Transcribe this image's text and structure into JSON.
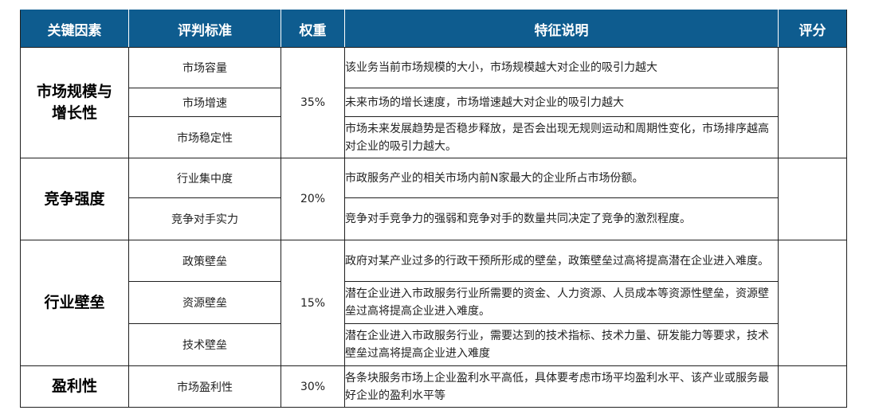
{
  "header": {
    "col_factor": "关键因素",
    "col_criterion": "评判标准",
    "col_weight": "权重",
    "col_desc": "特征说明",
    "col_score": "评分"
  },
  "groups": [
    {
      "factor": "市场规模与增长性",
      "weight": "35%",
      "rows": [
        {
          "criterion": "市场容量",
          "desc": "该业务当前市场规模的大小，市场规模越大对企业的吸引力越大"
        },
        {
          "criterion": "市场增速",
          "desc": "未来市场的增长速度，市场增速越大对企业的吸引力越大"
        },
        {
          "criterion": "市场稳定性",
          "desc": "市场未来发展趋势是否稳步释放，是否会出现无规则运动和周期性变化，市场排序越高对企业的吸引力越大。"
        }
      ]
    },
    {
      "factor": "竞争强度",
      "weight": "20%",
      "rows": [
        {
          "criterion": "行业集中度",
          "desc": "市政服务产业的相关市场内前N家最大的企业所占市场份额。"
        },
        {
          "criterion": "竞争对手实力",
          "desc": "竞争对手竞争力的强弱和竞争对手的数量共同决定了竞争的激烈程度。"
        }
      ]
    },
    {
      "factor": "行业壁垒",
      "weight": "15%",
      "rows": [
        {
          "criterion": "政策壁垒",
          "desc": "政府对某产业过多的行政干预所形成的壁垒，政策壁垒过高将提高潜在企业进入难度。"
        },
        {
          "criterion": "资源壁垒",
          "desc": "潜在企业进入市政服务行业所需要的资金、人力资源、人员成本等资源性壁垒，资源壁垒过高将提高企业进入难度。"
        },
        {
          "criterion": "技术壁垒",
          "desc": "潜在企业进入市政服务行业，需要达到的技术指标、技术力量、研发能力等要求，技术壁垒过高将提高企业进入难度"
        }
      ]
    },
    {
      "factor": "盈利性",
      "weight": "30%",
      "rows": [
        {
          "criterion": "市场盈利性",
          "desc": "各条块服务市场上企业盈利水平高低，具体要考虑市场平均盈利水平、该产业或服务最好企业的盈利水平等"
        }
      ]
    }
  ]
}
